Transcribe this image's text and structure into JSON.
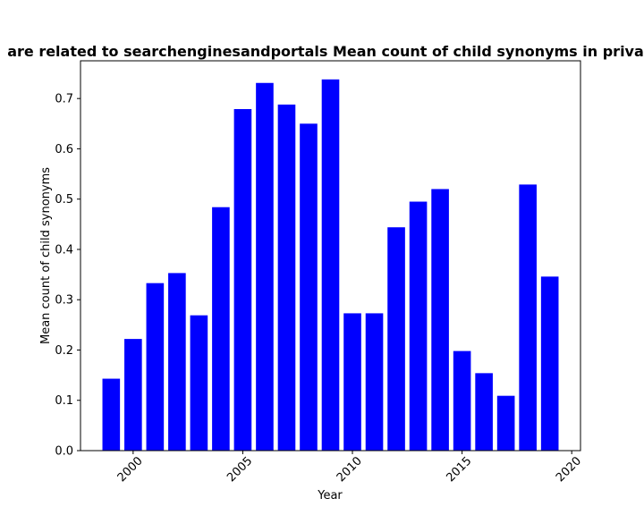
{
  "chart_data": {
    "type": "bar",
    "title": "are related to searchenginesandportals Mean count of child synonyms in priva",
    "xlabel": "Year",
    "ylabel": "Mean count of child synonyms",
    "x": [
      1999,
      2000,
      2001,
      2002,
      2003,
      2004,
      2005,
      2006,
      2007,
      2008,
      2009,
      2010,
      2011,
      2012,
      2013,
      2014,
      2015,
      2016,
      2017,
      2018,
      2019
    ],
    "values": [
      0.143,
      0.222,
      0.333,
      0.353,
      0.269,
      0.484,
      0.679,
      0.731,
      0.688,
      0.65,
      0.738,
      0.273,
      0.273,
      0.444,
      0.495,
      0.52,
      0.198,
      0.154,
      0.109,
      0.529,
      0.346
    ],
    "xlim": [
      1997.6,
      2020.4
    ],
    "ylim": [
      0,
      0.775
    ],
    "x_ticks": [
      "2000",
      "2005",
      "2010",
      "2015",
      "2020"
    ],
    "y_ticks": [
      "0.0",
      "0.1",
      "0.2",
      "0.3",
      "0.4",
      "0.5",
      "0.6",
      "0.7"
    ],
    "bar_color": "#0000ff",
    "grid": false,
    "legend": "none"
  }
}
